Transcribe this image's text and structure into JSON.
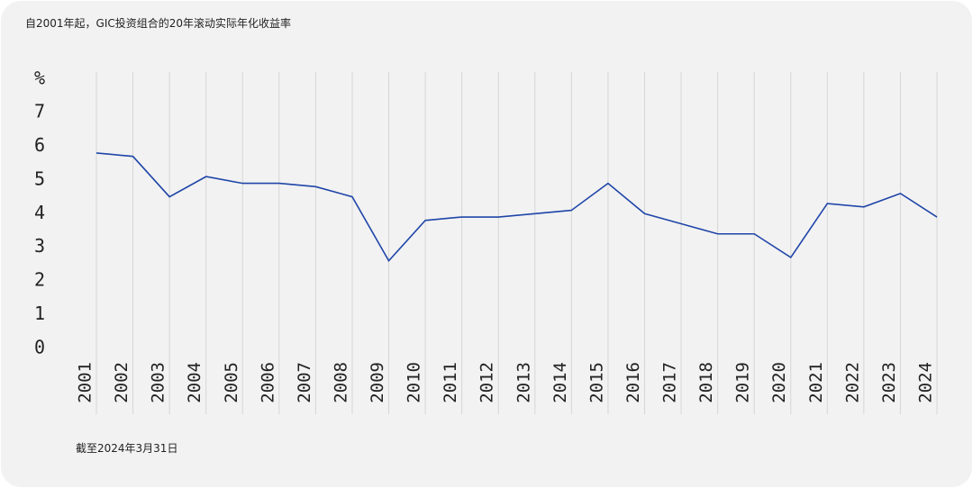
{
  "chart_data": {
    "type": "line",
    "title": "自2001年起，GIC投资组合的20年滚动实际年化收益率",
    "y_unit": "%",
    "note": "截至2024年3月31日",
    "categories": [
      "2001",
      "2002",
      "2003",
      "2004",
      "2005",
      "2006",
      "2007",
      "2008",
      "2009",
      "2010",
      "2011",
      "2012",
      "2013",
      "2014",
      "2015",
      "2016",
      "2017",
      "2018",
      "2019",
      "2020",
      "2021",
      "2022",
      "2023",
      "2024"
    ],
    "series": [
      {
        "name": "20年滚动实际年化收益率",
        "color": "#1f45a8",
        "values": [
          5.8,
          5.7,
          4.5,
          5.1,
          4.9,
          4.9,
          4.8,
          4.5,
          2.6,
          3.8,
          3.9,
          3.9,
          4.0,
          4.1,
          4.9,
          4.0,
          3.7,
          3.4,
          3.4,
          2.7,
          4.3,
          4.2,
          4.6,
          3.9
        ]
      }
    ],
    "ylim": [
      0,
      7
    ],
    "yticks": [
      0,
      1,
      2,
      3,
      4,
      5,
      6,
      7
    ],
    "grid": "x"
  }
}
